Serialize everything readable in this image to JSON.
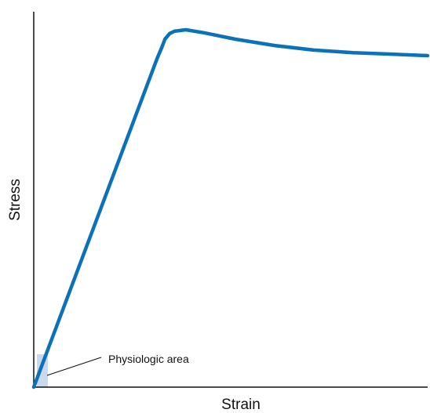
{
  "chart_data": {
    "type": "line",
    "x_label": "Strain",
    "y_label": "Stress",
    "annotation": "Physiologic area",
    "x": [
      0,
      31.3,
      32.5,
      33.3,
      34.5,
      35.7,
      38.6,
      43.2,
      51.2,
      61.2,
      71.1,
      81.1,
      91.0,
      100
    ],
    "series": [
      {
        "color": "#0b72b9",
        "values": [
          0,
          87.5,
          90.5,
          92.7,
          94.2,
          94.8,
          95.2,
          94.4,
          92.7,
          91.0,
          89.8,
          89.1,
          88.7,
          88.3
        ]
      }
    ],
    "xlim": [
      0,
      100
    ],
    "ylim": [
      0,
      100
    ]
  }
}
